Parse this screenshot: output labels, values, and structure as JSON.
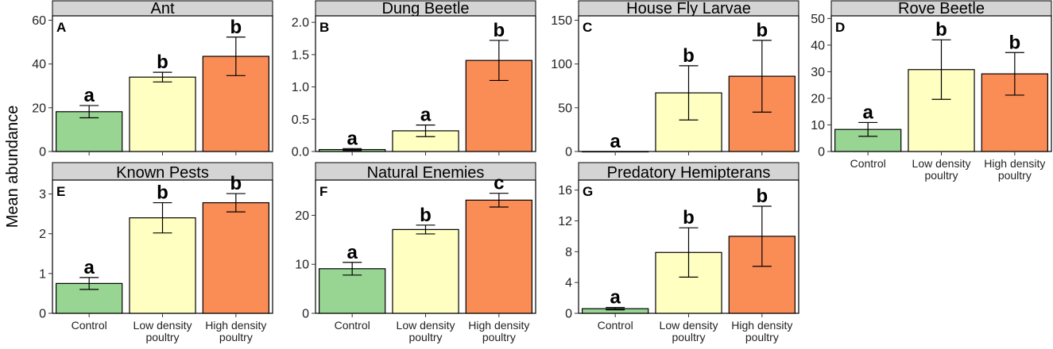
{
  "figure": {
    "ylabel": "Mean abundance",
    "treatments": [
      "Control",
      "Low density poultry",
      "High density poultry"
    ],
    "category_lines": [
      [
        "Control"
      ],
      [
        "Low density",
        "poultry"
      ],
      [
        "High density",
        "poultry"
      ]
    ],
    "colors": {
      "Control": "#98d593",
      "Low density poultry": "#ffffc2",
      "High density poultry": "#fa8c56"
    }
  },
  "chart_data": [
    {
      "type": "bar",
      "panel": "A",
      "title": "Ant",
      "categories": [
        "Control",
        "Low density poultry",
        "High density poultry"
      ],
      "values": [
        18.2,
        34.0,
        43.5
      ],
      "errors": [
        2.8,
        2.2,
        8.8
      ],
      "letters": [
        "a",
        "b",
        "b"
      ],
      "ylim": [
        0,
        62
      ],
      "yticks": [
        0,
        20,
        40,
        60
      ],
      "ytick_labels": [
        "0",
        "20",
        "40",
        "60"
      ],
      "xlabel": "",
      "ylabel": "Mean abundance"
    },
    {
      "type": "bar",
      "panel": "B",
      "title": "Dung Beetle",
      "categories": [
        "Control",
        "Low density poultry",
        "High density poultry"
      ],
      "values": [
        0.03,
        0.32,
        1.41
      ],
      "errors": [
        0.015,
        0.09,
        0.31
      ],
      "letters": [
        "a",
        "a",
        "b"
      ],
      "ylim": [
        0,
        2.1
      ],
      "yticks": [
        0,
        0.5,
        1,
        1.5,
        2
      ],
      "ytick_labels": [
        "0.0",
        "0.5",
        "1.0",
        "1.5",
        "2.0"
      ],
      "xlabel": "",
      "ylabel": ""
    },
    {
      "type": "bar",
      "panel": "C",
      "title": "House Fly Larvae",
      "categories": [
        "Control",
        "Low density poultry",
        "High density poultry"
      ],
      "values": [
        0,
        67,
        86
      ],
      "errors": [
        0,
        31,
        41
      ],
      "letters": [
        "a",
        "b",
        "b"
      ],
      "ylim": [
        0,
        155
      ],
      "yticks": [
        0,
        50,
        100,
        150
      ],
      "ytick_labels": [
        "0",
        "50",
        "100",
        "150"
      ],
      "xlabel": "",
      "ylabel": ""
    },
    {
      "type": "bar",
      "panel": "D",
      "title": "Rove Beetle",
      "categories": [
        "Control",
        "Low density poultry",
        "High density poultry"
      ],
      "values": [
        8.3,
        30.8,
        29.2
      ],
      "errors": [
        2.6,
        11.2,
        8.0
      ],
      "letters": [
        "a",
        "b",
        "b"
      ],
      "ylim": [
        0,
        51
      ],
      "yticks": [
        0,
        10,
        20,
        30,
        40,
        50
      ],
      "ytick_labels": [
        "0",
        "10",
        "20",
        "30",
        "40",
        "50"
      ],
      "xlabel": "",
      "ylabel": ""
    },
    {
      "type": "bar",
      "panel": "E",
      "title": "Known Pests",
      "categories": [
        "Control",
        "Low density poultry",
        "High density poultry"
      ],
      "values": [
        0.75,
        2.4,
        2.78
      ],
      "errors": [
        0.15,
        0.38,
        0.23
      ],
      "letters": [
        "a",
        "b",
        "b"
      ],
      "ylim": [
        0,
        3.35
      ],
      "yticks": [
        0,
        1,
        2,
        3
      ],
      "ytick_labels": [
        "0",
        "1",
        "2",
        "3"
      ],
      "xlabel": "",
      "ylabel": "Mean abundance"
    },
    {
      "type": "bar",
      "panel": "F",
      "title": "Natural Enemies",
      "categories": [
        "Control",
        "Low density poultry",
        "High density poultry"
      ],
      "values": [
        9.1,
        17.1,
        23.1
      ],
      "errors": [
        1.3,
        0.9,
        1.4
      ],
      "letters": [
        "a",
        "b",
        "c"
      ],
      "ylim": [
        0,
        27.2
      ],
      "yticks": [
        0,
        10,
        20
      ],
      "ytick_labels": [
        "0",
        "10",
        "20"
      ],
      "xlabel": "",
      "ylabel": ""
    },
    {
      "type": "bar",
      "panel": "G",
      "title": "Predatory Hemipterans",
      "categories": [
        "Control",
        "Low density poultry",
        "High density poultry"
      ],
      "values": [
        0.6,
        7.9,
        10.0
      ],
      "errors": [
        0.15,
        3.2,
        3.9
      ],
      "letters": [
        "a",
        "b",
        "b"
      ],
      "ylim": [
        0,
        17.3
      ],
      "yticks": [
        0,
        4,
        8,
        12,
        16
      ],
      "ytick_labels": [
        "0",
        "4",
        "8",
        "12",
        "16"
      ],
      "xlabel": "",
      "ylabel": ""
    }
  ]
}
